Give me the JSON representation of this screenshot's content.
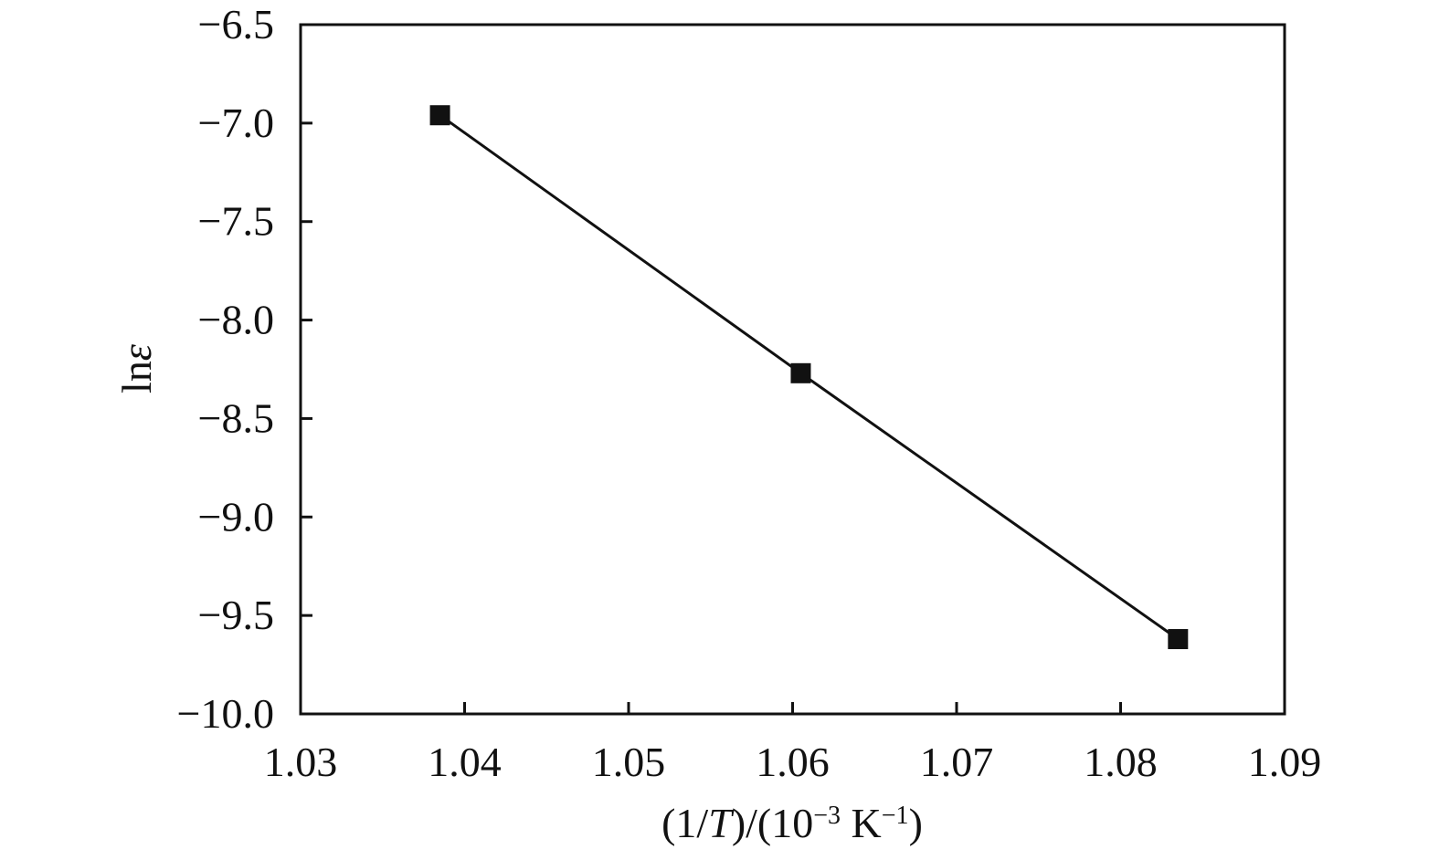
{
  "chart_data": {
    "type": "line",
    "title": "",
    "xlabel": {
      "open": "(1/",
      "var": "T",
      "mid": ")/(10",
      "exp1": "−3",
      "unit": " K",
      "exp2": "−1",
      "close": ")"
    },
    "ylabel": {
      "prefix": "ln",
      "var": "ε"
    },
    "xlim": [
      1.03,
      1.09
    ],
    "ylim": [
      -10.0,
      -6.5
    ],
    "xticks": [
      1.03,
      1.04,
      1.05,
      1.06,
      1.07,
      1.08,
      1.09
    ],
    "xtick_labels": [
      "1.03",
      "1.04",
      "1.05",
      "1.06",
      "1.07",
      "1.08",
      "1.09"
    ],
    "yticks": [
      -6.5,
      -7.0,
      -7.5,
      -8.0,
      -8.5,
      -9.0,
      -9.5,
      -10.0
    ],
    "ytick_labels": [
      "−6.5",
      "−7.0",
      "−7.5",
      "−8.0",
      "−8.5",
      "−9.0",
      "−9.5",
      "−10.0"
    ],
    "grid": false,
    "series": [
      {
        "marker": "square",
        "color": "#111111",
        "x": [
          1.0385,
          1.0605,
          1.0835
        ],
        "y": [
          -6.96,
          -8.27,
          -9.62
        ]
      }
    ]
  }
}
